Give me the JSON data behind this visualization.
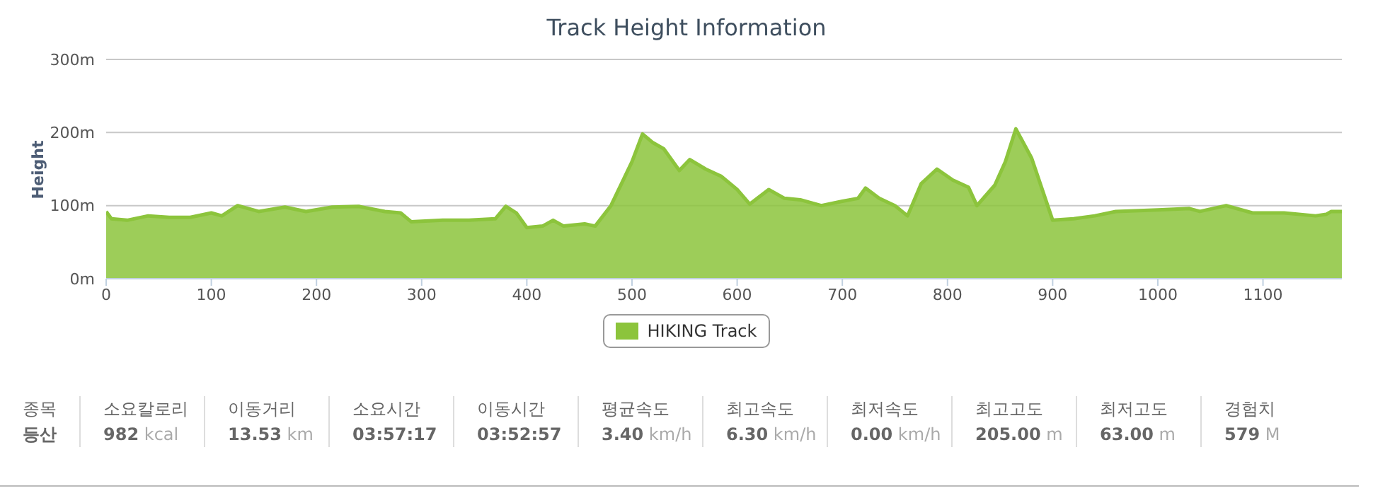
{
  "chart_data": [
    {
      "type": "area",
      "title": "Track Height Information",
      "ylabel": "Height",
      "legend": "bottom",
      "grid": "y",
      "xlim": [
        0,
        1175
      ],
      "xticks": [
        0,
        100,
        200,
        300,
        400,
        500,
        600,
        700,
        800,
        900,
        1000,
        1100
      ],
      "ylim": [
        0,
        300
      ],
      "yticks": [
        {
          "value": 0,
          "label": "0m"
        },
        {
          "value": 100,
          "label": "100m"
        },
        {
          "value": 200,
          "label": "200m"
        },
        {
          "value": 300,
          "label": "300m"
        }
      ],
      "x": [
        0,
        5,
        20,
        40,
        60,
        80,
        100,
        110,
        125,
        145,
        170,
        190,
        215,
        240,
        265,
        280,
        290,
        320,
        345,
        370,
        380,
        390,
        400,
        415,
        425,
        435,
        455,
        465,
        480,
        500,
        510,
        520,
        530,
        545,
        555,
        570,
        585,
        600,
        612,
        630,
        645,
        660,
        680,
        700,
        715,
        722,
        735,
        750,
        762,
        775,
        790,
        805,
        820,
        828,
        845,
        855,
        865,
        880,
        900,
        920,
        940,
        960,
        1000,
        1030,
        1040,
        1065,
        1090,
        1120,
        1150,
        1160,
        1165,
        1175
      ],
      "series": [
        {
          "name": "HIKING Track",
          "color": "#8cc43c",
          "values": [
            92,
            82,
            80,
            86,
            84,
            84,
            90,
            86,
            100,
            92,
            98,
            92,
            98,
            99,
            92,
            90,
            78,
            80,
            80,
            82,
            99,
            90,
            70,
            72,
            80,
            72,
            75,
            72,
            100,
            160,
            198,
            186,
            178,
            148,
            163,
            150,
            140,
            122,
            102,
            122,
            110,
            108,
            100,
            106,
            110,
            124,
            110,
            100,
            86,
            130,
            150,
            135,
            125,
            100,
            128,
            160,
            205,
            165,
            80,
            82,
            86,
            92,
            94,
            96,
            92,
            100,
            90,
            90,
            86,
            88,
            92,
            92
          ]
        }
      ]
    },
    {
      "type": "other",
      "categories": [
        "종목",
        "소요칼로리",
        "이동거리",
        "소요시간",
        "이동시간",
        "평균속도",
        "최고속도",
        "최저속도",
        "최고고도",
        "최저고도",
        "경험치"
      ],
      "value_labels": [
        "등산",
        "982 kcal",
        "13.53 km",
        "03:57:17",
        "03:52:57",
        "3.40 km/h",
        "6.30 km/h",
        "0.00 km/h",
        "205.00 m",
        "63.00 m",
        "579 M"
      ]
    }
  ]
}
